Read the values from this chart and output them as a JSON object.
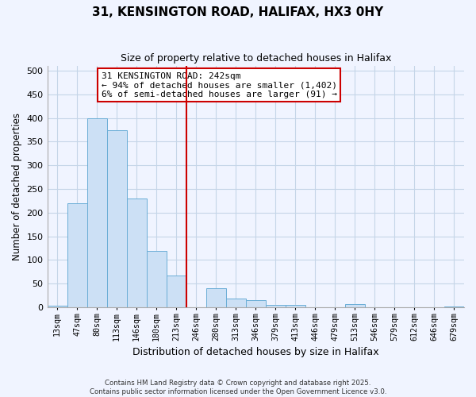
{
  "title": "31, KENSINGTON ROAD, HALIFAX, HX3 0HY",
  "subtitle": "Size of property relative to detached houses in Halifax",
  "xlabel": "Distribution of detached houses by size in Halifax",
  "ylabel": "Number of detached properties",
  "bar_labels": [
    "13sqm",
    "47sqm",
    "80sqm",
    "113sqm",
    "146sqm",
    "180sqm",
    "213sqm",
    "246sqm",
    "280sqm",
    "313sqm",
    "346sqm",
    "379sqm",
    "413sqm",
    "446sqm",
    "479sqm",
    "513sqm",
    "546sqm",
    "579sqm",
    "612sqm",
    "646sqm",
    "679sqm"
  ],
  "bar_values": [
    3,
    220,
    400,
    375,
    230,
    120,
    68,
    0,
    40,
    18,
    15,
    5,
    5,
    0,
    0,
    7,
    0,
    0,
    0,
    0,
    2
  ],
  "bar_color": "#cce0f5",
  "bar_edge_color": "#6baed6",
  "vline_color": "#cc0000",
  "annotation_title": "31 KENSINGTON ROAD: 242sqm",
  "annotation_line1": "← 94% of detached houses are smaller (1,402)",
  "annotation_line2": "6% of semi-detached houses are larger (91) →",
  "annotation_box_facecolor": "#ffffff",
  "annotation_box_edgecolor": "#cc0000",
  "ylim": [
    0,
    510
  ],
  "yticks": [
    0,
    50,
    100,
    150,
    200,
    250,
    300,
    350,
    400,
    450,
    500
  ],
  "footnote1": "Contains HM Land Registry data © Crown copyright and database right 2025.",
  "footnote2": "Contains public sector information licensed under the Open Government Licence v3.0.",
  "bg_color": "#f0f4ff",
  "grid_color": "#c5d5e8"
}
